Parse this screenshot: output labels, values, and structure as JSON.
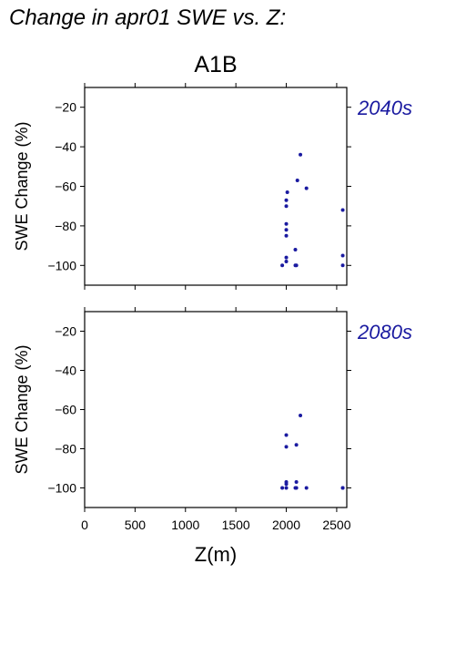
{
  "title": "Change in apr01 SWE vs. Z:",
  "scenario": "A1B",
  "chart_data": [
    {
      "type": "scatter",
      "panel_label": "2040s",
      "xlabel": "",
      "ylabel": "SWE Change (%)",
      "xlim": [
        0,
        2600
      ],
      "ylim": [
        -110,
        -10
      ],
      "xticks": [
        0,
        500,
        1000,
        1500,
        2000,
        2500
      ],
      "yticks": [
        -20,
        -40,
        -60,
        -80,
        -100
      ],
      "series": [
        {
          "x": [
            1960,
            2000,
            2000,
            2000,
            2000,
            2000,
            2000,
            2000,
            2010,
            2090,
            2090,
            2100,
            2110,
            2140,
            2200,
            2560,
            2560,
            2560
          ],
          "y": [
            -100,
            -96,
            -98,
            -85,
            -82,
            -79,
            -70,
            -67,
            -63,
            -100,
            -92,
            -100,
            -57,
            -44,
            -61,
            -72,
            -95,
            -100
          ]
        }
      ],
      "marker_color": "#1a1aa0"
    },
    {
      "type": "scatter",
      "panel_label": "2080s",
      "xlabel": "Z(m)",
      "ylabel": "SWE Change (%)",
      "xlim": [
        0,
        2600
      ],
      "ylim": [
        -110,
        -10
      ],
      "xticks": [
        0,
        500,
        1000,
        1500,
        2000,
        2500
      ],
      "yticks": [
        -20,
        -40,
        -60,
        -80,
        -100
      ],
      "series": [
        {
          "x": [
            1960,
            2000,
            2000,
            2000,
            2000,
            2000,
            2090,
            2100,
            2100,
            2100,
            2140,
            2200,
            2560,
            2560
          ],
          "y": [
            -100,
            -100,
            -98,
            -97,
            -79,
            -73,
            -100,
            -78,
            -97,
            -100,
            -63,
            -100,
            -100,
            -100
          ]
        }
      ],
      "marker_color": "#1a1aa0"
    }
  ]
}
